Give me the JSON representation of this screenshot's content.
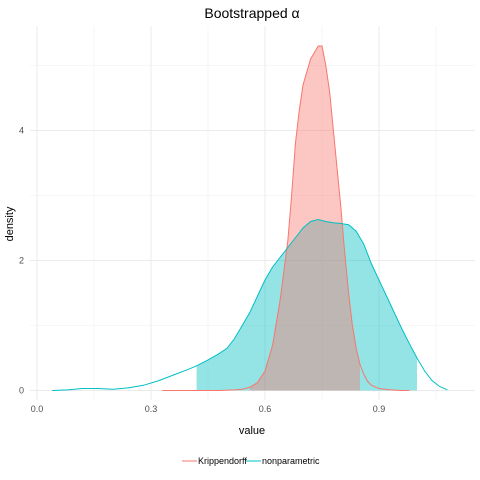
{
  "chart_data": {
    "type": "area",
    "title": "Bootstrapped α",
    "xlabel": "value",
    "ylabel": "density",
    "xlim": [
      0,
      1.1
    ],
    "ylim": [
      0,
      5.5
    ],
    "x_ticks": [
      0.0,
      0.3,
      0.6,
      0.9
    ],
    "x_tick_labels": [
      "0.0",
      "0.3",
      "0.6",
      "0.9"
    ],
    "y_ticks": [
      0,
      2,
      4
    ],
    "y_tick_labels": [
      "0",
      "2",
      "4"
    ],
    "grid": true,
    "legend_position": "bottom",
    "series": [
      {
        "name": "Krippendorff",
        "color": "#F8766D",
        "fill": "#F8766D",
        "interval": [
          0.56,
          0.85
        ],
        "points": [
          [
            0.33,
            0.0
          ],
          [
            0.4,
            0.0
          ],
          [
            0.48,
            0.0
          ],
          [
            0.52,
            0.01
          ],
          [
            0.54,
            0.02
          ],
          [
            0.56,
            0.05
          ],
          [
            0.58,
            0.12
          ],
          [
            0.6,
            0.3
          ],
          [
            0.62,
            0.7
          ],
          [
            0.64,
            1.4
          ],
          [
            0.66,
            2.3
          ],
          [
            0.67,
            3.0
          ],
          [
            0.68,
            3.8
          ],
          [
            0.69,
            4.3
          ],
          [
            0.7,
            4.7
          ],
          [
            0.71,
            4.9
          ],
          [
            0.72,
            5.1
          ],
          [
            0.73,
            5.2
          ],
          [
            0.74,
            5.3
          ],
          [
            0.75,
            5.3
          ],
          [
            0.76,
            5.0
          ],
          [
            0.77,
            4.6
          ],
          [
            0.78,
            4.0
          ],
          [
            0.79,
            3.4
          ],
          [
            0.8,
            2.8
          ],
          [
            0.81,
            2.1
          ],
          [
            0.82,
            1.5
          ],
          [
            0.83,
            1.0
          ],
          [
            0.84,
            0.65
          ],
          [
            0.85,
            0.4
          ],
          [
            0.86,
            0.25
          ],
          [
            0.87,
            0.14
          ],
          [
            0.88,
            0.08
          ],
          [
            0.9,
            0.03
          ],
          [
            0.93,
            0.01
          ],
          [
            0.96,
            0.0
          ],
          [
            0.98,
            0.0
          ]
        ]
      },
      {
        "name": "nonparametric",
        "color": "#00BFC4",
        "fill": "#00BFC4",
        "interval": [
          0.42,
          1.0
        ],
        "points": [
          [
            0.04,
            0.0
          ],
          [
            0.08,
            0.01
          ],
          [
            0.12,
            0.03
          ],
          [
            0.16,
            0.03
          ],
          [
            0.2,
            0.02
          ],
          [
            0.24,
            0.04
          ],
          [
            0.28,
            0.08
          ],
          [
            0.32,
            0.15
          ],
          [
            0.36,
            0.24
          ],
          [
            0.4,
            0.33
          ],
          [
            0.42,
            0.38
          ],
          [
            0.45,
            0.47
          ],
          [
            0.48,
            0.57
          ],
          [
            0.5,
            0.65
          ],
          [
            0.52,
            0.8
          ],
          [
            0.54,
            1.0
          ],
          [
            0.56,
            1.2
          ],
          [
            0.58,
            1.45
          ],
          [
            0.6,
            1.7
          ],
          [
            0.62,
            1.9
          ],
          [
            0.64,
            2.05
          ],
          [
            0.66,
            2.2
          ],
          [
            0.68,
            2.35
          ],
          [
            0.7,
            2.5
          ],
          [
            0.72,
            2.6
          ],
          [
            0.74,
            2.63
          ],
          [
            0.76,
            2.6
          ],
          [
            0.78,
            2.58
          ],
          [
            0.8,
            2.57
          ],
          [
            0.82,
            2.55
          ],
          [
            0.84,
            2.45
          ],
          [
            0.86,
            2.25
          ],
          [
            0.88,
            1.95
          ],
          [
            0.9,
            1.7
          ],
          [
            0.92,
            1.45
          ],
          [
            0.94,
            1.2
          ],
          [
            0.96,
            0.95
          ],
          [
            0.98,
            0.72
          ],
          [
            1.0,
            0.5
          ],
          [
            1.02,
            0.3
          ],
          [
            1.04,
            0.15
          ],
          [
            1.06,
            0.06
          ],
          [
            1.08,
            0.01
          ]
        ]
      }
    ]
  }
}
